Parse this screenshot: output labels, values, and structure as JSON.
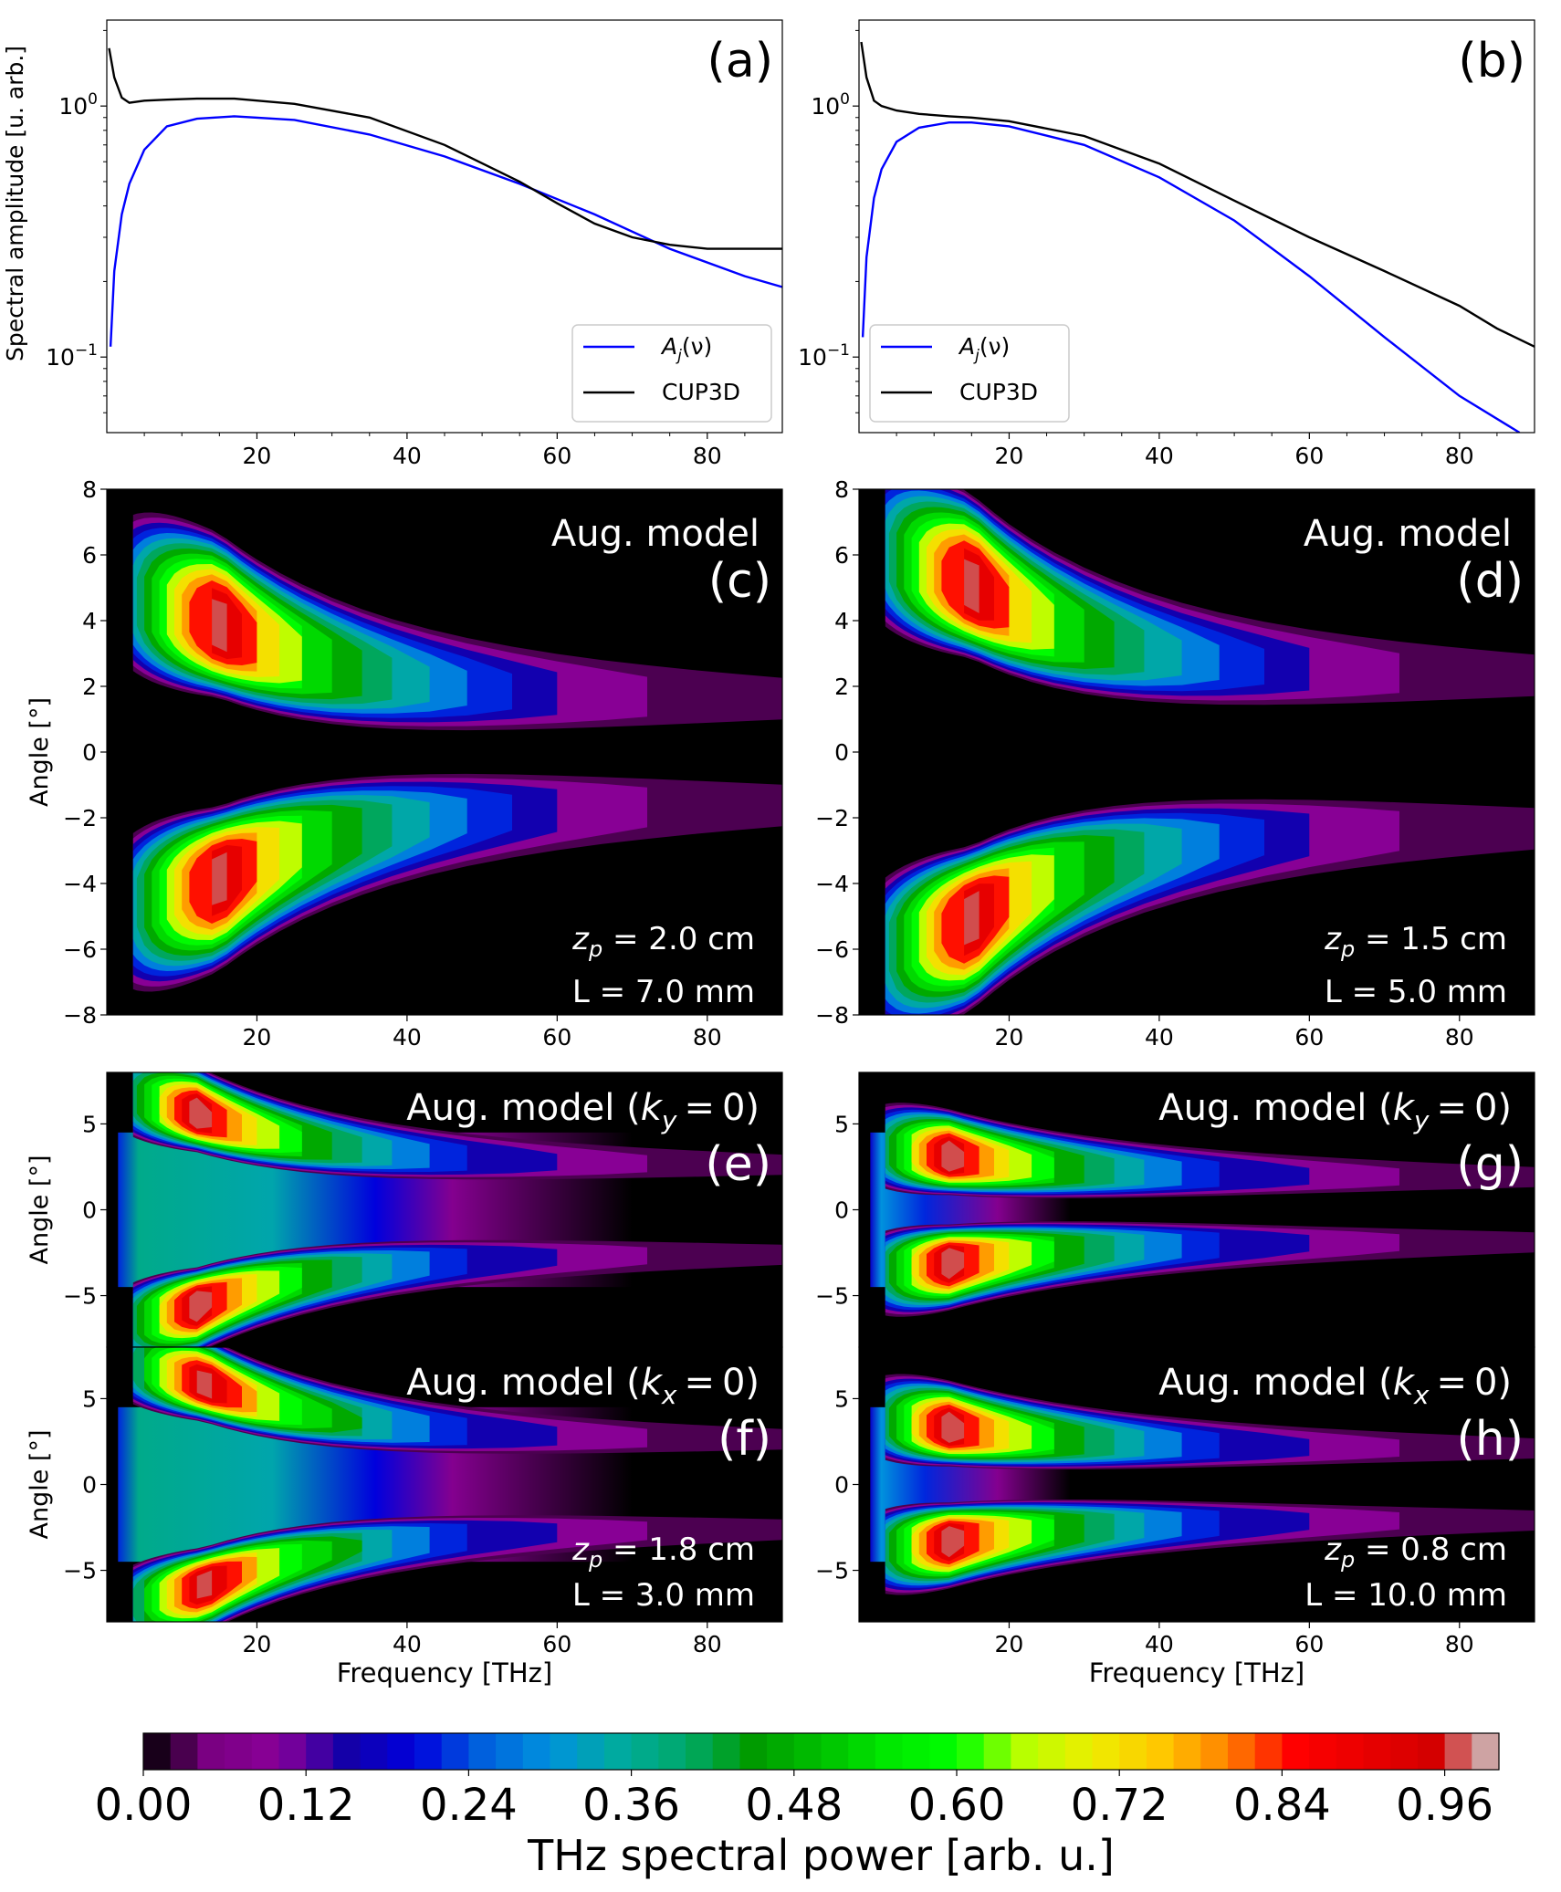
{
  "figure": {
    "colorbar": {
      "label": "THz spectral power [arb. u.]",
      "ticks": [
        "0.00",
        "0.12",
        "0.24",
        "0.36",
        "0.48",
        "0.60",
        "0.72",
        "0.84",
        "0.96"
      ],
      "tick_values": [
        0.0,
        0.12,
        0.24,
        0.36,
        0.48,
        0.6,
        0.72,
        0.84,
        0.96
      ],
      "range": [
        0,
        1
      ],
      "colormap": "nipy_spectral",
      "levels": 50
    }
  },
  "chart_data": [
    {
      "id": "a",
      "type": "line",
      "panel_label": "(a)",
      "ylabel": "Spectral amplitude [u. arb.]",
      "yscale": "log",
      "xlim": [
        0,
        90
      ],
      "ylim": [
        0.05,
        2.2
      ],
      "xticks": [
        20,
        40,
        60,
        80
      ],
      "yticks": [
        {
          "value": 1,
          "label": "10^0"
        },
        {
          "value": 0.1,
          "label": "10^-1"
        }
      ],
      "legend": "bottom-right",
      "series": [
        {
          "name": "A_j(ν)",
          "color": "#0000ff",
          "x": [
            0.5,
            1,
            2,
            3,
            5,
            8,
            12,
            17,
            25,
            35,
            45,
            55,
            65,
            75,
            85,
            90
          ],
          "y": [
            0.11,
            0.22,
            0.37,
            0.49,
            0.67,
            0.83,
            0.89,
            0.91,
            0.88,
            0.77,
            0.63,
            0.49,
            0.37,
            0.27,
            0.21,
            0.19
          ]
        },
        {
          "name": "CUP3D",
          "color": "#000000",
          "x": [
            0.3,
            1,
            2,
            3,
            5,
            8,
            12,
            17,
            25,
            35,
            45,
            55,
            60,
            65,
            70,
            75,
            80,
            85,
            90
          ],
          "y": [
            1.7,
            1.3,
            1.08,
            1.03,
            1.05,
            1.06,
            1.07,
            1.07,
            1.02,
            0.9,
            0.7,
            0.5,
            0.41,
            0.34,
            0.3,
            0.28,
            0.27,
            0.27,
            0.27
          ]
        }
      ]
    },
    {
      "id": "b",
      "type": "line",
      "panel_label": "(b)",
      "yscale": "log",
      "xlim": [
        0,
        90
      ],
      "ylim": [
        0.05,
        2.2
      ],
      "xticks": [
        20,
        40,
        60,
        80
      ],
      "yticks": [
        {
          "value": 1,
          "label": "10^0"
        },
        {
          "value": 0.1,
          "label": "10^-1"
        }
      ],
      "legend": "bottom-left",
      "series": [
        {
          "name": "A_j(ν)",
          "color": "#0000ff",
          "x": [
            0.5,
            1,
            2,
            3,
            5,
            8,
            12,
            15,
            20,
            30,
            40,
            50,
            60,
            70,
            80,
            88
          ],
          "y": [
            0.12,
            0.25,
            0.43,
            0.56,
            0.72,
            0.82,
            0.86,
            0.86,
            0.83,
            0.7,
            0.52,
            0.35,
            0.21,
            0.12,
            0.07,
            0.05
          ]
        },
        {
          "name": "CUP3D",
          "color": "#000000",
          "x": [
            0.3,
            1,
            2,
            3,
            5,
            8,
            12,
            15,
            20,
            30,
            40,
            50,
            60,
            70,
            80,
            85,
            90
          ],
          "y": [
            1.8,
            1.3,
            1.05,
            1.0,
            0.96,
            0.93,
            0.91,
            0.9,
            0.87,
            0.76,
            0.59,
            0.42,
            0.3,
            0.22,
            0.16,
            0.13,
            0.11
          ]
        }
      ]
    },
    {
      "id": "c",
      "type": "heatmap",
      "panel_label": "(c)",
      "title": "Aug. model",
      "ylabel": "Angle [°]",
      "xlim": [
        0,
        90
      ],
      "ylim": [
        -8,
        8
      ],
      "xticks": [
        20,
        40,
        60,
        80
      ],
      "yticks": [
        -8,
        -6,
        -4,
        -2,
        0,
        2,
        4,
        6,
        8
      ],
      "annotation_zp": "z_p = 2.0 cm",
      "annotation_L": "L = 7.0 mm",
      "lobes": [
        {
          "peak_frequency_THz": 15,
          "peak_angle_deg": 3.8,
          "asymptote_angle_deg": 1.5
        },
        {
          "peak_frequency_THz": 15,
          "peak_angle_deg": -3.8,
          "asymptote_angle_deg": -1.5
        }
      ]
    },
    {
      "id": "d",
      "type": "heatmap",
      "panel_label": "(d)",
      "title": "Aug. model",
      "xlim": [
        0,
        90
      ],
      "ylim": [
        -8,
        8
      ],
      "xticks": [
        20,
        40,
        60,
        80
      ],
      "yticks": [
        -8,
        -6,
        -4,
        -2,
        0,
        2,
        4,
        6,
        8
      ],
      "annotation_zp": "z_p = 1.5 cm",
      "annotation_L": "L = 5.0 mm",
      "lobes": [
        {
          "peak_frequency_THz": 15,
          "peak_angle_deg": 5.0,
          "asymptote_angle_deg": 2.2
        },
        {
          "peak_frequency_THz": 15,
          "peak_angle_deg": -5.0,
          "asymptote_angle_deg": -2.2
        }
      ]
    },
    {
      "id": "e",
      "type": "heatmap",
      "panel_label": "(e)",
      "title": "Aug. model (k_y = 0)",
      "ylabel": "Angle [°]",
      "xlim": [
        0,
        90
      ],
      "ylim": [
        -8,
        8
      ],
      "yticks": [
        -5,
        0,
        5
      ],
      "lobes": [
        {
          "peak_frequency_THz": 12,
          "peak_angle_deg": 5.5,
          "asymptote_angle_deg": 2.5
        },
        {
          "peak_frequency_THz": 12,
          "peak_angle_deg": -5.5,
          "asymptote_angle_deg": -2.5
        }
      ]
    },
    {
      "id": "f",
      "type": "heatmap",
      "panel_label": "(f)",
      "title": "Aug. model (k_x = 0)",
      "ylabel": "Angle [°]",
      "xlabel": "Frequency [THz]",
      "xlim": [
        0,
        90
      ],
      "ylim": [
        -8,
        8
      ],
      "xticks": [
        20,
        40,
        60,
        80
      ],
      "yticks": [
        -5,
        0,
        5
      ],
      "annotation_zp": "z_p = 1.8 cm",
      "annotation_L": "L = 3.0 mm",
      "lobes": [
        {
          "peak_frequency_THz": 13,
          "peak_angle_deg": 5.8,
          "asymptote_angle_deg": 2.5
        },
        {
          "peak_frequency_THz": 13,
          "peak_angle_deg": -5.8,
          "asymptote_angle_deg": -2.5
        }
      ]
    },
    {
      "id": "g",
      "type": "heatmap",
      "panel_label": "(g)",
      "title": "Aug. model (k_y = 0)",
      "xlim": [
        0,
        90
      ],
      "ylim": [
        -8,
        8
      ],
      "yticks": [
        -5,
        0,
        5
      ],
      "lobes": [
        {
          "peak_frequency_THz": 12,
          "peak_angle_deg": 3.0,
          "asymptote_angle_deg": 1.8
        },
        {
          "peak_frequency_THz": 12,
          "peak_angle_deg": -3.0,
          "asymptote_angle_deg": -1.8
        }
      ]
    },
    {
      "id": "h",
      "type": "heatmap",
      "panel_label": "(h)",
      "title": "Aug. model (k_x = 0)",
      "xlabel": "Frequency [THz]",
      "xlim": [
        0,
        90
      ],
      "ylim": [
        -8,
        8
      ],
      "xticks": [
        20,
        40,
        60,
        80
      ],
      "yticks": [
        -5,
        0,
        5
      ],
      "annotation_zp": "z_p = 0.8 cm",
      "annotation_L": "L = 10.0 mm",
      "lobes": [
        {
          "peak_frequency_THz": 12,
          "peak_angle_deg": 3.2,
          "asymptote_angle_deg": 2.0
        },
        {
          "peak_frequency_THz": 12,
          "peak_angle_deg": -3.2,
          "asymptote_angle_deg": -2.0
        }
      ]
    }
  ]
}
